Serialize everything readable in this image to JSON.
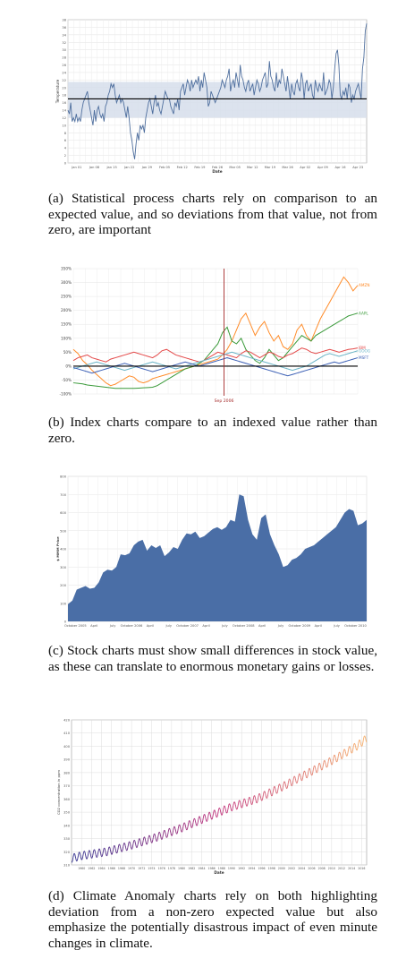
{
  "figures": [
    {
      "caption": "(a) Statistical process charts rely on comparison to an expected value, and so deviations from that value, not from zero, are important"
    },
    {
      "caption": "(b) Index charts compare to an indexed value rather than zero."
    },
    {
      "caption": "(c) Stock charts must show small differences in stock value, as these can translate to enormous monetary gains or losses."
    },
    {
      "caption": "(d) Climate Anomaly charts rely on both highlighting deviation from a non-zero expected value but also emphasize the potentially disastrous impact of even minute changes in climate."
    }
  ],
  "chart_data": [
    {
      "type": "line",
      "xlabel": "Date",
      "ylabel": "Temperature",
      "ylim": [
        0,
        38
      ],
      "yticks": [
        0,
        2,
        4,
        6,
        8,
        10,
        12,
        14,
        16,
        18,
        20,
        22,
        24,
        26,
        28,
        30,
        32,
        34,
        36,
        38
      ],
      "xticks": [
        "Jan 01",
        "Jan 08",
        "Jan 15",
        "Jan 22",
        "Jan 29",
        "Feb 05",
        "Feb 12",
        "Feb 19",
        "Feb 26",
        "Mar 05",
        "Mar 12",
        "Mar 19",
        "Mar 26",
        "Apr 02",
        "Apr 09",
        "Apr 16",
        "Apr 23"
      ],
      "expected_value": 17,
      "control_band": [
        12,
        21.5
      ],
      "colors": {
        "line": "#4f6f9e",
        "band": "#d6deeb",
        "expected": "#000000"
      },
      "values": [
        14,
        13,
        16,
        11,
        12,
        11,
        13,
        11,
        12,
        11,
        14,
        16,
        17,
        18,
        19,
        16,
        14,
        12,
        10,
        14,
        11,
        14,
        15,
        13,
        12,
        13,
        11,
        15,
        16,
        18,
        19,
        21,
        20,
        21,
        18,
        16,
        17,
        18,
        16,
        17,
        16,
        14,
        12,
        15,
        12,
        8,
        6,
        3,
        1,
        5,
        8,
        6,
        10,
        9,
        10,
        8,
        12,
        14,
        16,
        17,
        15,
        13,
        16,
        18,
        15,
        16,
        14,
        13,
        15,
        17,
        19,
        18,
        17,
        17,
        15,
        14,
        13,
        16,
        15,
        17,
        14,
        19,
        20,
        21,
        18,
        20,
        22,
        21,
        19,
        22,
        20,
        21,
        22,
        21,
        23,
        19,
        22,
        20,
        24,
        22,
        20,
        15,
        16,
        19,
        18,
        17,
        16,
        17,
        18,
        19,
        20,
        22,
        21,
        20,
        22,
        23,
        25,
        19,
        21,
        22,
        20,
        24,
        22,
        20,
        26,
        23,
        22,
        20,
        19,
        21,
        22,
        19,
        20,
        21,
        18,
        20,
        22,
        21,
        19,
        20,
        22,
        23,
        24,
        20,
        21,
        27,
        23,
        22,
        20,
        19,
        24,
        20,
        22,
        21,
        25,
        23,
        21,
        19,
        23,
        20,
        17,
        21,
        19,
        18,
        21,
        22,
        20,
        19,
        24,
        22,
        17,
        21,
        22,
        19,
        20,
        21,
        18,
        17,
        22,
        20,
        19,
        21,
        20,
        19,
        24,
        18,
        19,
        20,
        22,
        21,
        17,
        20,
        25,
        29,
        30,
        26,
        18,
        17,
        19,
        18,
        20,
        17,
        21,
        20,
        16,
        18,
        17,
        19,
        20,
        21,
        19,
        17,
        25,
        28,
        35,
        37
      ]
    },
    {
      "type": "line",
      "ylim": [
        -100,
        350
      ],
      "yticks": [
        "-100%",
        "-50%",
        "0%",
        "50%",
        "100%",
        "150%",
        "200%",
        "250%",
        "300%",
        "350%"
      ],
      "annotation": "Sep 2006",
      "annotation_color": "#a52a2a",
      "series": [
        {
          "name": "AMZN",
          "color": "#ff8c2a",
          "values": [
            60,
            45,
            20,
            5,
            -15,
            -30,
            -45,
            -60,
            -70,
            -65,
            -55,
            -45,
            -35,
            -40,
            -55,
            -60,
            -55,
            -45,
            -40,
            -35,
            -30,
            -25,
            -20,
            -15,
            -10,
            -5,
            0,
            5,
            10,
            15,
            20,
            25,
            40,
            60,
            90,
            130,
            170,
            190,
            150,
            110,
            140,
            160,
            120,
            90,
            110,
            70,
            60,
            80,
            130,
            150,
            110,
            90,
            130,
            170,
            200,
            230,
            260,
            290,
            320,
            300,
            270,
            290
          ]
        },
        {
          "name": "AAPL",
          "color": "#3a9a3a",
          "values": [
            -60,
            -62,
            -64,
            -68,
            -70,
            -72,
            -74,
            -76,
            -78,
            -80,
            -80,
            -80,
            -80,
            -80,
            -79,
            -78,
            -77,
            -76,
            -70,
            -60,
            -50,
            -40,
            -30,
            -20,
            -10,
            -5,
            0,
            10,
            20,
            40,
            60,
            80,
            120,
            140,
            90,
            80,
            100,
            60,
            40,
            20,
            10,
            30,
            60,
            40,
            20,
            30,
            50,
            70,
            90,
            110,
            100,
            90,
            110,
            120,
            130,
            140,
            150,
            160,
            170,
            180,
            185,
            190
          ]
        },
        {
          "name": "IBM",
          "color": "#e44a4a",
          "values": [
            20,
            30,
            35,
            40,
            30,
            25,
            20,
            15,
            25,
            30,
            35,
            40,
            45,
            50,
            45,
            40,
            35,
            30,
            40,
            55,
            60,
            50,
            40,
            35,
            30,
            25,
            20,
            15,
            20,
            30,
            40,
            50,
            45,
            40,
            35,
            30,
            45,
            55,
            50,
            40,
            30,
            40,
            50,
            45,
            35,
            30,
            40,
            45,
            55,
            65,
            60,
            50,
            45,
            50,
            55,
            60,
            55,
            50,
            55,
            60,
            62,
            65
          ]
        },
        {
          "name": "GOOG",
          "color": "#69b3c6",
          "values": [
            -10,
            -5,
            0,
            5,
            10,
            15,
            10,
            5,
            0,
            -5,
            -10,
            -15,
            -10,
            -5,
            0,
            5,
            10,
            15,
            10,
            5,
            0,
            -5,
            -10,
            -5,
            0,
            5,
            10,
            15,
            20,
            25,
            30,
            35,
            40,
            45,
            50,
            45,
            40,
            35,
            30,
            25,
            20,
            15,
            10,
            5,
            0,
            -5,
            -10,
            -15,
            -10,
            -5,
            0,
            10,
            20,
            30,
            40,
            45,
            40,
            35,
            40,
            45,
            50,
            55
          ]
        },
        {
          "name": "MSFT",
          "color": "#3b5fb5",
          "values": [
            -5,
            -10,
            -15,
            -20,
            -25,
            -20,
            -15,
            -10,
            -5,
            0,
            5,
            10,
            5,
            0,
            -5,
            -10,
            -15,
            -20,
            -15,
            -10,
            -5,
            0,
            5,
            10,
            15,
            10,
            5,
            0,
            5,
            10,
            15,
            20,
            25,
            30,
            25,
            20,
            15,
            10,
            5,
            0,
            -5,
            -10,
            -15,
            -20,
            -25,
            -30,
            -35,
            -30,
            -25,
            -20,
            -15,
            -10,
            -5,
            0,
            5,
            10,
            15,
            10,
            15,
            20,
            25,
            30
          ]
        }
      ]
    },
    {
      "type": "area",
      "ylabel": "$ MMM Price",
      "ylim": [
        0,
        800
      ],
      "xticks": [
        "October 2005",
        "April",
        "July",
        "October 2006",
        "April",
        "July",
        "October 2007",
        "April",
        "July",
        "October 2008",
        "April",
        "July",
        "October 2009",
        "April",
        "July",
        "October 2010"
      ],
      "colors": {
        "area": "#4a6ea6"
      },
      "values": [
        95,
        115,
        175,
        185,
        195,
        180,
        185,
        215,
        270,
        285,
        280,
        300,
        370,
        365,
        375,
        420,
        440,
        450,
        390,
        420,
        405,
        420,
        360,
        380,
        410,
        400,
        450,
        485,
        480,
        495,
        460,
        470,
        490,
        510,
        520,
        505,
        520,
        560,
        550,
        700,
        690,
        560,
        480,
        450,
        570,
        590,
        480,
        420,
        370,
        300,
        310,
        340,
        350,
        370,
        400,
        410,
        420,
        440,
        460,
        480,
        500,
        520,
        560,
        600,
        620,
        610,
        530,
        540,
        560
      ]
    },
    {
      "type": "line",
      "xlabel": "Date",
      "ylabel": "CO2 concentration in ppm",
      "ylim": [
        310,
        420
      ],
      "yticks": [
        310,
        320,
        330,
        340,
        350,
        360,
        370,
        380,
        390,
        400,
        410,
        420
      ],
      "xticks": [
        "1960",
        "1962",
        "1964",
        "1966",
        "1968",
        "1970",
        "1972",
        "1974",
        "1976",
        "1978",
        "1980",
        "1982",
        "1984",
        "1986",
        "1988",
        "1990",
        "1992",
        "1994",
        "1996",
        "1998",
        "2000",
        "2002",
        "2004",
        "2006",
        "2008",
        "2010",
        "2012",
        "2014",
        "2016"
      ],
      "trend": {
        "x": [
          1958,
          1960,
          1965,
          1970,
          1975,
          1980,
          1985,
          1990,
          1995,
          2000,
          2005,
          2010,
          2015,
          2017
        ],
        "y": [
          315,
          317,
          320,
          325,
          331,
          338,
          346,
          354,
          360,
          369,
          379,
          389,
          400,
          406
        ]
      },
      "seasonal_amplitude_ppm": 3.2,
      "colors": {
        "start": "#2b2b8c",
        "mid": "#c0307a",
        "end": "#f7b06a"
      }
    }
  ]
}
